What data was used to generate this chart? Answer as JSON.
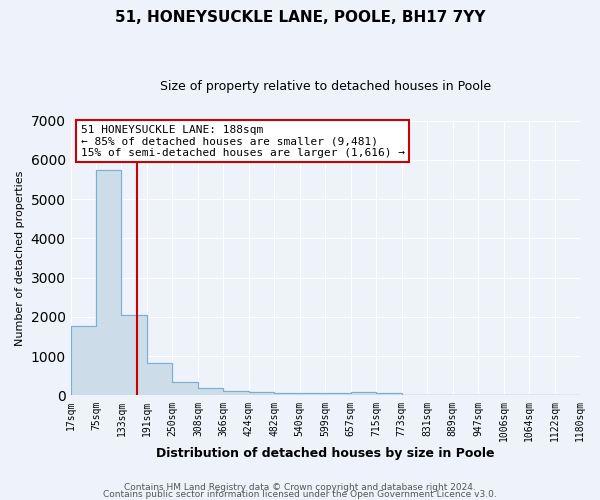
{
  "title1": "51, HONEYSUCKLE LANE, POOLE, BH17 7YY",
  "title2": "Size of property relative to detached houses in Poole",
  "xlabel": "Distribution of detached houses by size in Poole",
  "ylabel": "Number of detached properties",
  "bar_values": [
    1780,
    5750,
    2060,
    820,
    340,
    200,
    115,
    90,
    70,
    55,
    50,
    90,
    50,
    0,
    0,
    0,
    0,
    0,
    0,
    0
  ],
  "bar_labels": [
    "17sqm",
    "75sqm",
    "133sqm",
    "191sqm",
    "250sqm",
    "308sqm",
    "366sqm",
    "424sqm",
    "482sqm",
    "540sqm",
    "599sqm",
    "657sqm",
    "715sqm",
    "773sqm",
    "831sqm",
    "889sqm",
    "947sqm",
    "1006sqm",
    "1064sqm",
    "1122sqm",
    "1180sqm"
  ],
  "ylim": [
    0,
    7000
  ],
  "bar_color": "#ccdce8",
  "bar_edge_color": "#7bafd4",
  "property_line_x": 2.6,
  "annotation_title": "51 HONEYSUCKLE LANE: 188sqm",
  "annotation_line1": "← 85% of detached houses are smaller (9,481)",
  "annotation_line2": "15% of semi-detached houses are larger (1,616) →",
  "annotation_box_facecolor": "#ffffff",
  "annotation_box_edgecolor": "#cc0000",
  "line_color": "#cc0000",
  "footer1": "Contains HM Land Registry data © Crown copyright and database right 2024.",
  "footer2": "Contains public sector information licensed under the Open Government Licence v3.0.",
  "background_color": "#eef2fa",
  "grid_color": "#ffffff",
  "title1_fontsize": 11,
  "title2_fontsize": 9,
  "ylabel_fontsize": 8,
  "xlabel_fontsize": 9,
  "tick_fontsize": 7,
  "footer_fontsize": 6.5
}
